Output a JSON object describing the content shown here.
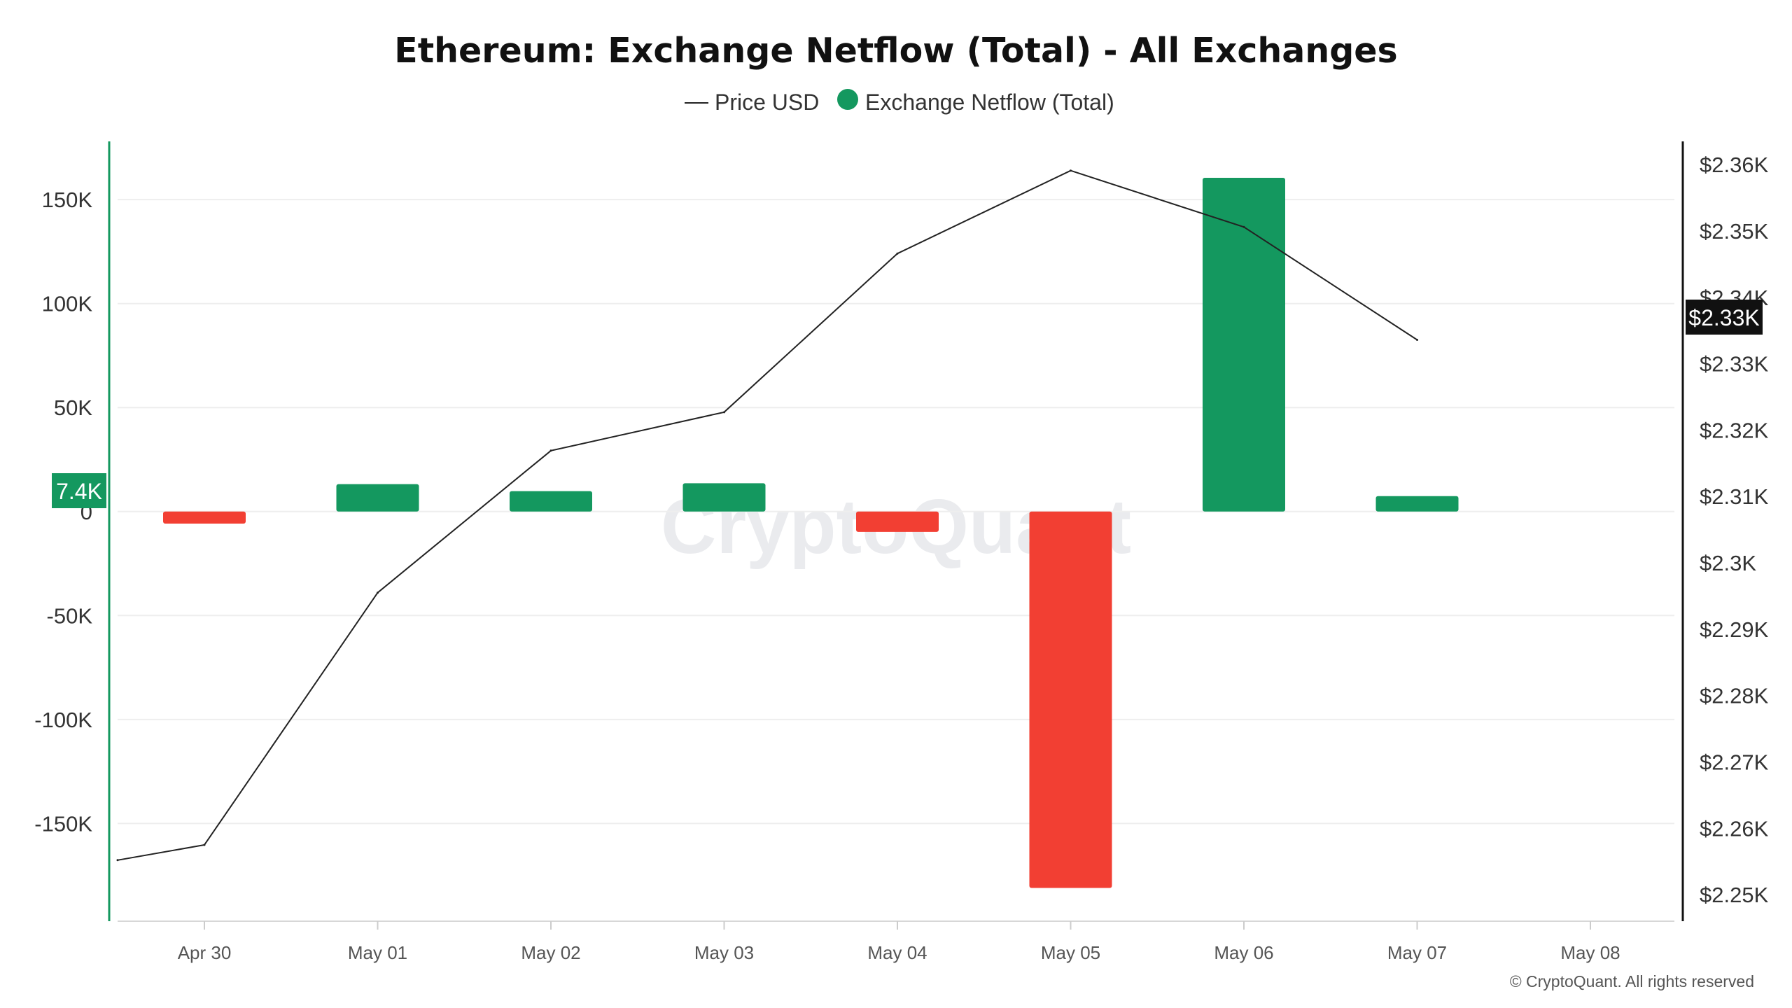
{
  "chart_data": {
    "type": "bar",
    "title": "Ethereum: Exchange Netflow (Total) - All Exchanges",
    "legend": {
      "position": "top-center",
      "items": [
        {
          "label": "Price USD",
          "marker": "line"
        },
        {
          "label": "Exchange Netflow (Total)",
          "marker": "dot"
        }
      ]
    },
    "x_ticks": [
      "Apr 30",
      "May 01",
      "May 02",
      "May 03",
      "May 04",
      "May 05",
      "May 06",
      "May 07",
      "May 08"
    ],
    "series": [
      {
        "name": "Exchange Netflow (Total)",
        "axis": "left",
        "render": "bar",
        "points": [
          {
            "x": "Apr 30",
            "y": -5800
          },
          {
            "x": "May 01",
            "y": 13200
          },
          {
            "x": "May 02",
            "y": 9800
          },
          {
            "x": "May 03",
            "y": 13600
          },
          {
            "x": "May 04",
            "y": -9800
          },
          {
            "x": "May 05",
            "y": -181000
          },
          {
            "x": "May 06",
            "y": 160500
          },
          {
            "x": "May 07",
            "y": 7400
          }
        ]
      },
      {
        "name": "Price USD",
        "axis": "right",
        "render": "line",
        "points": [
          {
            "x": "Apr 29.5",
            "y": 2255.2
          },
          {
            "x": "Apr 30",
            "y": 2257.5
          },
          {
            "x": "May 01",
            "y": 2295.5
          },
          {
            "x": "May 02",
            "y": 2316.9
          },
          {
            "x": "May 03",
            "y": 2322.7
          },
          {
            "x": "May 04",
            "y": 2346.6
          },
          {
            "x": "May 05",
            "y": 2359.1
          },
          {
            "x": "May 06",
            "y": 2350.6
          },
          {
            "x": "May 07",
            "y": 2333.6
          }
        ]
      }
    ],
    "y_left": {
      "ticks": [
        "150K",
        "100K",
        "50K",
        "0",
        "-50K",
        "-100K",
        "-150K"
      ],
      "tick_values": [
        150000,
        100000,
        50000,
        0,
        -50000,
        -100000,
        -150000
      ],
      "range": [
        -197000,
        178000
      ]
    },
    "y_right": {
      "ticks": [
        "$2.36K",
        "$2.35K",
        "$2.34K",
        "$2.33K",
        "$2.32K",
        "$2.31K",
        "$2.3K",
        "$2.29K",
        "$2.28K",
        "$2.27K",
        "$2.26K",
        "$2.25K"
      ],
      "tick_values": [
        2360,
        2350,
        2340,
        2330,
        2320,
        2310,
        2300,
        2290,
        2280,
        2270,
        2260,
        2250
      ],
      "range": [
        2246,
        2363.5
      ]
    },
    "current_value_labels": {
      "netflow": "7.4K",
      "price": "$2.33K",
      "price_value": 2333.6,
      "netflow_value": 7400
    },
    "grid": true,
    "watermark": "CryptoQuant",
    "copyright": "© CryptoQuant. All rights reserved",
    "colors": {
      "positive_bar": "#14985f",
      "negative_bar": "#f23f33",
      "price_line": "#222222",
      "grid": "#eeeeee",
      "left_axis": "#14985f",
      "right_axis": "#111111",
      "price_tag_bg": "#111111",
      "netflow_tag_bg": "#14985f"
    }
  }
}
